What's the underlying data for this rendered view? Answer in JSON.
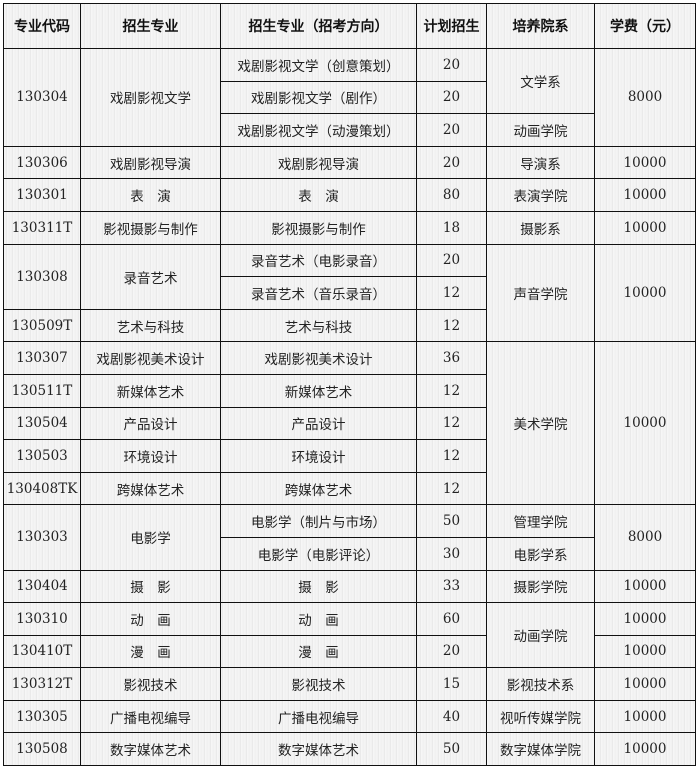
{
  "headers": [
    "专业代码",
    "招生专业",
    "招生专业（招考方向）",
    "计划招生",
    "培养院系",
    "学费（元）"
  ],
  "rows": [
    [
      {
        "t": "130304",
        "rs": 3
      },
      {
        "t": "戏剧影视文学",
        "rs": 3
      },
      {
        "t": "戏剧影视文学（创意策划）"
      },
      {
        "t": "20"
      },
      {
        "t": "文学系",
        "rs": 2
      },
      {
        "t": "8000",
        "rs": 3
      }
    ],
    [
      null,
      null,
      {
        "t": "戏剧影视文学（剧作）"
      },
      {
        "t": "20"
      },
      null,
      null
    ],
    [
      null,
      null,
      {
        "t": "戏剧影视文学（动漫策划）"
      },
      {
        "t": "20"
      },
      {
        "t": "动画学院"
      },
      null
    ],
    [
      {
        "t": "130306"
      },
      {
        "t": "戏剧影视导演"
      },
      {
        "t": "戏剧影视导演"
      },
      {
        "t": "20"
      },
      {
        "t": "导演系"
      },
      {
        "t": "10000"
      }
    ],
    [
      {
        "t": "130301"
      },
      {
        "t": "表　演"
      },
      {
        "t": "表　演"
      },
      {
        "t": "80"
      },
      {
        "t": "表演学院"
      },
      {
        "t": "10000"
      }
    ],
    [
      {
        "t": "130311T"
      },
      {
        "t": "影视摄影与制作"
      },
      {
        "t": "影视摄影与制作"
      },
      {
        "t": "18"
      },
      {
        "t": "摄影系"
      },
      {
        "t": "10000"
      }
    ],
    [
      {
        "t": "130308",
        "rs": 2
      },
      {
        "t": "录音艺术",
        "rs": 2
      },
      {
        "t": "录音艺术（电影录音）"
      },
      {
        "t": "20"
      },
      {
        "t": "声音学院",
        "rs": 3
      },
      {
        "t": "10000",
        "rs": 3
      }
    ],
    [
      null,
      null,
      {
        "t": "录音艺术（音乐录音）"
      },
      {
        "t": "12"
      },
      null,
      null
    ],
    [
      {
        "t": "130509T"
      },
      {
        "t": "艺术与科技"
      },
      {
        "t": "艺术与科技"
      },
      {
        "t": "12"
      },
      null,
      null
    ],
    [
      {
        "t": "130307"
      },
      {
        "t": "戏剧影视美术设计"
      },
      {
        "t": "戏剧影视美术设计"
      },
      {
        "t": "36"
      },
      {
        "t": "美术学院",
        "rs": 5
      },
      {
        "t": "10000",
        "rs": 5
      }
    ],
    [
      {
        "t": "130511T"
      },
      {
        "t": "新媒体艺术"
      },
      {
        "t": "新媒体艺术"
      },
      {
        "t": "12"
      },
      null,
      null
    ],
    [
      {
        "t": "130504"
      },
      {
        "t": "产品设计"
      },
      {
        "t": "产品设计"
      },
      {
        "t": "12"
      },
      null,
      null
    ],
    [
      {
        "t": "130503"
      },
      {
        "t": "环境设计"
      },
      {
        "t": "环境设计"
      },
      {
        "t": "12"
      },
      null,
      null
    ],
    [
      {
        "t": "130408TK"
      },
      {
        "t": "跨媒体艺术"
      },
      {
        "t": "跨媒体艺术"
      },
      {
        "t": "12"
      },
      null,
      null
    ],
    [
      {
        "t": "130303",
        "rs": 2
      },
      {
        "t": "电影学",
        "rs": 2
      },
      {
        "t": "电影学（制片与市场）"
      },
      {
        "t": "50"
      },
      {
        "t": "管理学院"
      },
      {
        "t": "8000",
        "rs": 2
      }
    ],
    [
      null,
      null,
      {
        "t": "电影学（电影评论）"
      },
      {
        "t": "30"
      },
      {
        "t": "电影学系"
      },
      null
    ],
    [
      {
        "t": "130404"
      },
      {
        "t": "摄　影"
      },
      {
        "t": "摄　影"
      },
      {
        "t": "33"
      },
      {
        "t": "摄影学院"
      },
      {
        "t": "10000"
      }
    ],
    [
      {
        "t": "130310"
      },
      {
        "t": "动　画"
      },
      {
        "t": "动　画"
      },
      {
        "t": "60"
      },
      {
        "t": "动画学院",
        "rs": 2
      },
      {
        "t": "10000"
      }
    ],
    [
      {
        "t": "130410T"
      },
      {
        "t": "漫　画"
      },
      {
        "t": "漫　画"
      },
      {
        "t": "20"
      },
      null,
      {
        "t": "10000"
      }
    ],
    [
      {
        "t": "130312T"
      },
      {
        "t": "影视技术"
      },
      {
        "t": "影视技术"
      },
      {
        "t": "15"
      },
      {
        "t": "影视技术系"
      },
      {
        "t": "10000"
      }
    ],
    [
      {
        "t": "130305"
      },
      {
        "t": "广播电视编导"
      },
      {
        "t": "广播电视编导"
      },
      {
        "t": "40"
      },
      {
        "t": "视听传媒学院"
      },
      {
        "t": "10000"
      }
    ],
    [
      {
        "t": "130508"
      },
      {
        "t": "数字媒体艺术"
      },
      {
        "t": "数字媒体艺术"
      },
      {
        "t": "50"
      },
      {
        "t": "数字媒体学院"
      },
      {
        "t": "10000"
      }
    ]
  ]
}
